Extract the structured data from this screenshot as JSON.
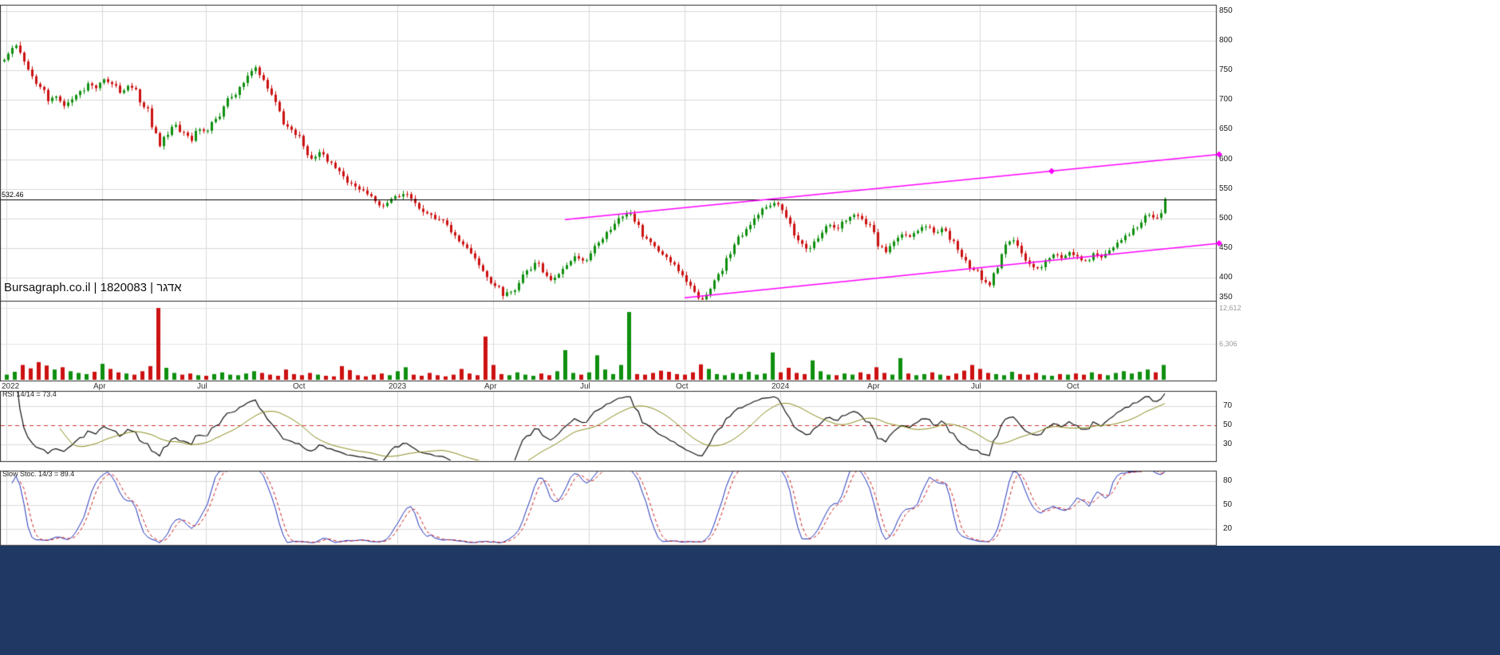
{
  "app": {
    "watermark": "Bursagraph.co.il | 1820083 | אדגר",
    "level_label": "532.46"
  },
  "colors": {
    "up": "#0f8f0f",
    "down": "#cc1111",
    "grid": "#d9d9d9",
    "grid_light": "#e3e3e3",
    "border": "#2a2a2a",
    "level_line": "#000000",
    "trendline": "#ff00ff",
    "rsi_line": "#111111",
    "rsi_ma": "#8b8b20",
    "midline_dash": "#cc3333",
    "stoch_k": "#2233bb",
    "stoch_d": "#cc2222",
    "footer": "#1f3864"
  },
  "chart_data": {
    "type": "candlestick",
    "symbol": "1820083",
    "security_name": "אדגר",
    "panels": [
      "price",
      "volume",
      "rsi",
      "slow_stochastic"
    ],
    "timeframe_ticks": [
      {
        "label": "2022",
        "index": 0
      },
      {
        "label": "Apr",
        "index": 12
      },
      {
        "label": "Jul",
        "index": 25
      },
      {
        "label": "Oct",
        "index": 37
      },
      {
        "label": "2023",
        "index": 49
      },
      {
        "label": "Apr",
        "index": 61
      },
      {
        "label": "Jul",
        "index": 73
      },
      {
        "label": "Oct",
        "index": 85
      },
      {
        "label": "2024",
        "index": 97
      },
      {
        "label": "Apr",
        "index": 109
      },
      {
        "label": "Jul",
        "index": 122
      },
      {
        "label": "Oct",
        "index": 134
      }
    ],
    "price_panel": {
      "axis_ticks": [
        850,
        800,
        750,
        700,
        650,
        600,
        550,
        500,
        450,
        400,
        350
      ],
      "horizontal_level": 532.46,
      "first_open": 765,
      "closes": [
        778,
        792,
        765,
        740,
        722,
        698,
        706,
        690,
        701,
        715,
        728,
        720,
        735,
        727,
        712,
        724,
        718,
        688,
        654,
        622,
        641,
        658,
        645,
        631,
        650,
        648,
        668,
        689,
        705,
        722,
        741,
        755,
        734,
        709,
        681,
        655,
        641,
        622,
        601,
        612,
        596,
        585,
        571,
        559,
        549,
        541,
        529,
        521,
        533,
        537,
        541,
        526,
        511,
        506,
        498,
        489,
        471,
        456,
        441,
        421,
        401,
        386,
        369,
        376,
        391,
        412,
        425,
        409,
        396,
        406,
        421,
        436,
        429,
        441,
        459,
        477,
        491,
        503,
        508,
        489,
        466,
        453,
        439,
        426,
        411,
        393,
        376,
        363,
        381,
        406,
        433,
        456,
        471,
        489,
        506,
        519,
        526,
        514,
        491,
        463,
        449,
        461,
        476,
        489,
        483,
        496,
        506,
        499,
        489,
        453,
        443,
        461,
        473,
        469,
        479,
        486,
        476,
        483,
        464,
        447,
        429,
        413,
        396,
        387,
        416,
        456,
        463,
        441,
        423,
        416,
        429,
        439,
        433,
        443,
        436,
        429,
        441,
        434,
        446,
        459,
        471,
        483,
        493,
        506,
        501,
        533
      ],
      "trendlines": [
        {
          "from": {
            "index": 70,
            "price": 498
          },
          "to": {
            "index": 152,
            "price": 608
          },
          "markers": [
            {
              "index": 131,
              "price": 580
            },
            {
              "index": 152,
              "price": 608
            }
          ]
        },
        {
          "from": {
            "index": 85,
            "price": 366
          },
          "to": {
            "index": 152,
            "price": 458
          },
          "markers": [
            {
              "index": 152,
              "price": 458
            }
          ]
        }
      ]
    },
    "volume_panel": {
      "axis_ticks": [
        "12,612",
        "6,306"
      ],
      "axis_tick_values": [
        12612,
        6306
      ],
      "max_value": 12612,
      "volumes": [
        900,
        1400,
        2600,
        2000,
        3100,
        2500,
        1800,
        2200,
        1500,
        1200,
        1000,
        1400,
        2800,
        1900,
        1300,
        1100,
        900,
        1500,
        2400,
        12612,
        2100,
        1200,
        900,
        1100,
        800,
        700,
        1000,
        1300,
        900,
        800,
        1100,
        1500,
        1200,
        900,
        700,
        1800,
        1000,
        800,
        1200,
        900,
        700,
        600,
        2400,
        1700,
        800,
        600,
        900,
        1100,
        800,
        1500,
        2200,
        900,
        700,
        1200,
        800,
        600,
        900,
        1900,
        1100,
        800,
        7600,
        2600,
        1000,
        800,
        1300,
        900,
        700,
        1100,
        800,
        1500,
        5200,
        1200,
        900,
        1300,
        4300,
        1800,
        1000,
        2600,
        11900,
        1000,
        900,
        1200,
        1600,
        1400,
        1000,
        900,
        1300,
        2700,
        1900,
        1000,
        800,
        1200,
        1000,
        1400,
        900,
        1100,
        4800,
        1300,
        2100,
        1200,
        1000,
        3400,
        1500,
        900,
        800,
        1100,
        900,
        1300,
        1000,
        2200,
        1200,
        900,
        3800,
        1100,
        800,
        1000,
        1300,
        900,
        700,
        1100,
        1600,
        2600,
        1900,
        1200,
        1000,
        800,
        1400,
        1000,
        900,
        1200,
        800,
        700,
        1000,
        900,
        1100,
        900,
        1300,
        1000,
        800,
        1200,
        1500,
        1100,
        1400,
        1800,
        1300,
        2600
      ]
    },
    "rsi_panel": {
      "label": "RSI 14/14 = 73.4",
      "period": 14,
      "ma_period": 14,
      "value": 73.4,
      "axis_ticks": [
        70,
        50,
        30
      ],
      "midline": 50
    },
    "stoch_panel": {
      "label": "Slow Stoc. 14/3 = 89.4",
      "k_period": 14,
      "d_period": 3,
      "value": 89.4,
      "axis_ticks": [
        80,
        50,
        20
      ]
    }
  }
}
